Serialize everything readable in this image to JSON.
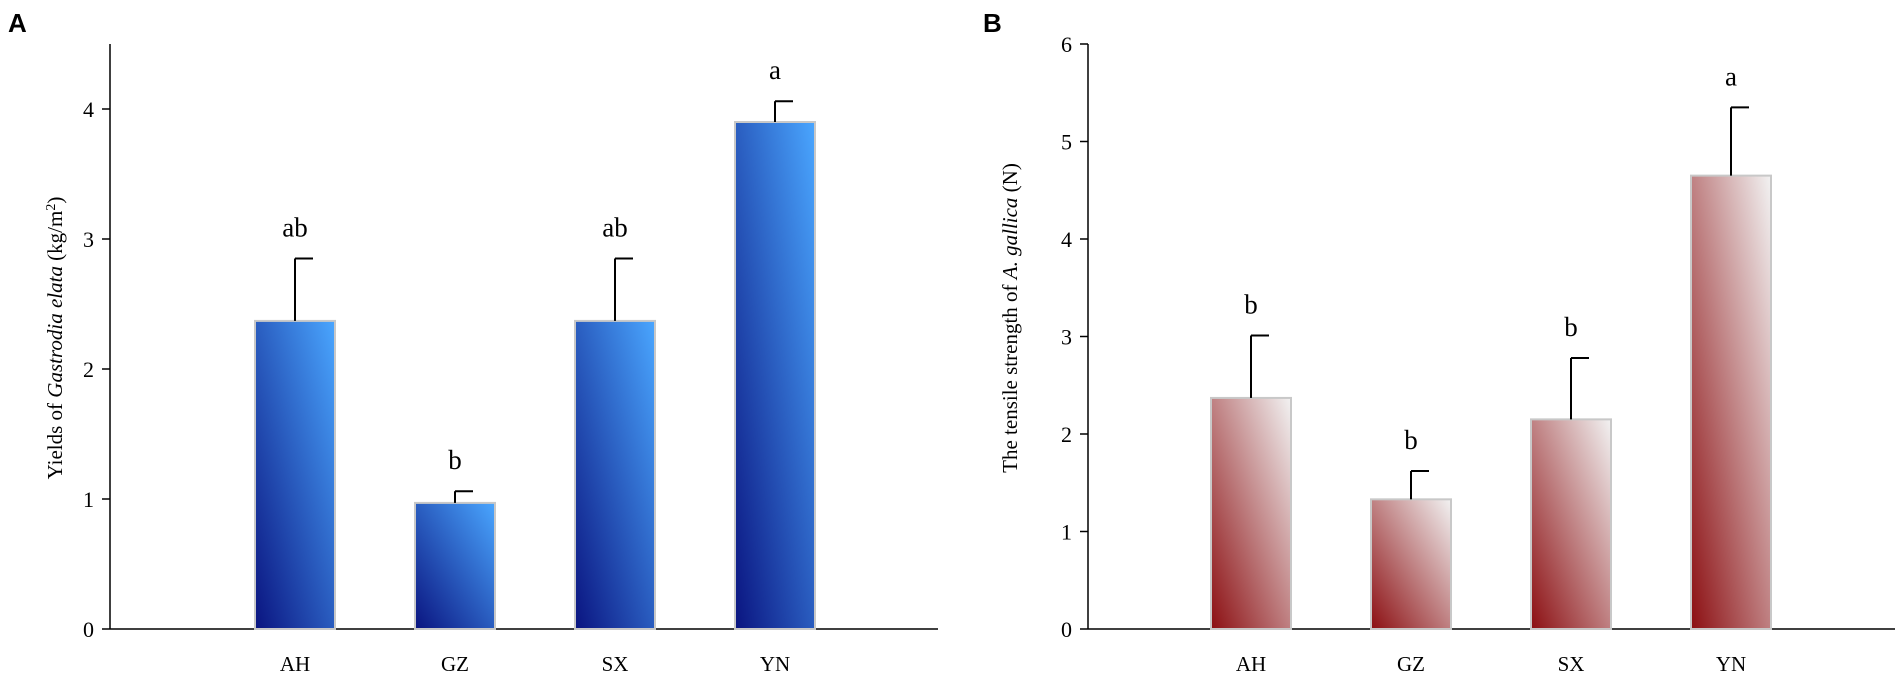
{
  "chart_data": [
    {
      "panel": "A",
      "type": "bar",
      "categories": [
        "AH",
        "GZ",
        "SX",
        "YN"
      ],
      "values": [
        2.37,
        0.97,
        2.37,
        3.9
      ],
      "errors": [
        0.48,
        0.09,
        0.48,
        0.16
      ],
      "significance": [
        "ab",
        "b",
        "ab",
        "a"
      ],
      "ylabel_parts": [
        "Yields of ",
        "Gastrodia elata",
        " (kg/m",
        "2",
        ")"
      ],
      "ylim": [
        0,
        4.5
      ],
      "yticks": [
        0,
        1,
        2,
        3,
        4
      ],
      "ytick_labels": [
        "0",
        "1",
        "2",
        "3",
        "4"
      ],
      "color_top": "#4aa6ff",
      "color_bottom": "#0a1480",
      "bar_border": "#c8c8c8"
    },
    {
      "panel": "B",
      "type": "bar",
      "categories": [
        "AH",
        "GZ",
        "SX",
        "YN"
      ],
      "values": [
        2.37,
        1.33,
        2.15,
        4.65
      ],
      "errors": [
        0.64,
        0.29,
        0.63,
        0.7
      ],
      "significance": [
        "b",
        "b",
        "b",
        "a"
      ],
      "ylabel_parts": [
        "The tensile strength of ",
        "A. gallica",
        " (N)"
      ],
      "ylim": [
        0,
        6
      ],
      "yticks": [
        0,
        1,
        2,
        3,
        4,
        5,
        6
      ],
      "ytick_labels": [
        "0",
        "1",
        "2",
        "3",
        "4",
        "5",
        "6"
      ],
      "color_top": "#f2f2f2",
      "color_bottom": "#8c0f12",
      "bar_border": "#c8c8c8"
    }
  ]
}
